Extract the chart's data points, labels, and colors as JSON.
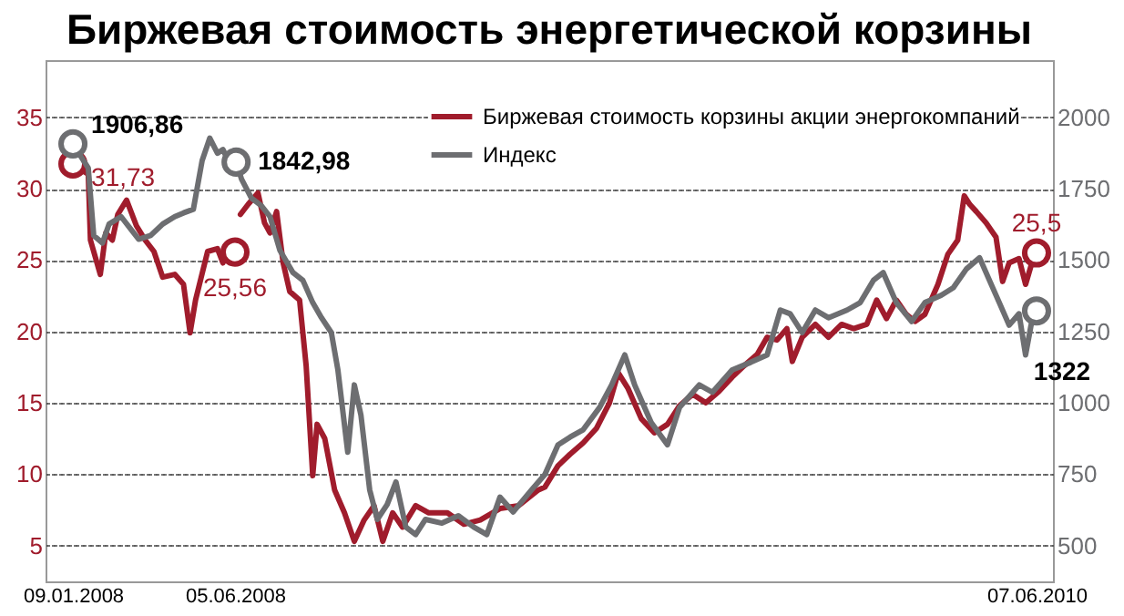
{
  "chart_data": {
    "type": "line",
    "title": "Биржевая стоимость энергетической корзины",
    "xlim": [
      "2007-12-15",
      "2010-06-22"
    ],
    "xticks": [
      {
        "value": "2008-01-09",
        "label": "09.01.2008"
      },
      {
        "value": "2008-06-05",
        "label": "05.06.2008"
      },
      {
        "value": "2010-06-07",
        "label": "07.06.2010"
      }
    ],
    "ylim": [
      2.5,
      39
    ],
    "yticks": [
      5,
      10,
      15,
      20,
      25,
      30,
      35
    ],
    "y2lim": [
      375,
      2200
    ],
    "y2ticks": [
      500,
      750,
      1000,
      1250,
      1500,
      1750,
      2000
    ],
    "grid": "y",
    "legend": "top right",
    "line_style": "solid",
    "series": [
      {
        "name": "Биржевая стоимость корзины акции энергокомпаний",
        "color": "#a01c2c",
        "x": [
          "2008-01-09",
          "2008-01-23",
          "2008-01-25",
          "2008-02-03",
          "2008-02-08",
          "2008-02-14",
          "2008-02-19",
          "2008-02-27",
          "2008-03-07",
          "2008-03-15",
          "2008-03-23",
          "2008-03-31",
          "2008-04-11",
          "2008-04-19",
          "2008-04-25",
          "2008-04-30",
          "2008-05-11",
          "2008-05-20",
          "2008-05-25",
          "2008-05-30",
          "2008-06-05",
          "2008-06-07",
          "2008-06-10",
          "2008-06-17",
          "2008-06-26",
          "2008-07-02",
          "2008-07-07",
          "2008-07-13",
          "2008-07-19",
          "2008-07-25",
          "2008-08-03",
          "2008-08-09",
          "2008-08-15",
          "2008-08-19",
          "2008-08-26",
          "2008-09-04",
          "2008-09-13",
          "2008-09-22",
          "2008-10-01",
          "2008-10-10",
          "2008-10-18",
          "2008-10-27",
          "2008-11-05",
          "2008-11-17",
          "2008-11-29",
          "2008-12-16",
          "2008-12-31",
          "2009-01-15",
          "2009-02-02",
          "2009-02-19",
          "2009-03-09",
          "2009-03-15",
          "2009-03-27",
          "2009-04-07",
          "2009-04-19",
          "2009-05-01",
          "2009-05-13",
          "2009-05-21",
          "2009-05-30",
          "2009-06-11",
          "2009-06-23",
          "2009-07-05",
          "2009-07-16",
          "2009-07-28",
          "2009-08-09",
          "2009-08-21",
          "2009-09-02",
          "2009-09-13",
          "2009-09-25",
          "2009-10-04",
          "2009-10-13",
          "2009-10-22",
          "2009-10-27",
          "2009-11-05",
          "2009-11-17",
          "2009-11-29",
          "2009-12-11",
          "2009-12-22",
          "2010-01-03",
          "2010-01-12",
          "2010-01-21",
          "2010-01-30",
          "2010-02-08",
          "2010-02-16",
          "2010-02-25",
          "2010-03-09",
          "2010-03-18",
          "2010-03-27",
          "2010-04-02",
          "2010-04-07",
          "2010-04-13",
          "2010-04-22",
          "2010-05-01",
          "2010-05-07",
          "2010-05-13",
          "2010-05-22",
          "2010-05-28",
          "2010-06-02",
          "2010-06-07"
        ],
        "values": [
          31.73,
          31,
          26.4,
          24,
          26.9,
          26.4,
          28.2,
          29.2,
          27.4,
          26.4,
          25.6,
          23.8,
          24,
          23.3,
          19.9,
          22.2,
          25.6,
          25.8,
          24.8,
          25.6,
          25.56,
          null,
          28.2,
          28.9,
          29.7,
          27.6,
          26.9,
          28.4,
          24.8,
          22.8,
          22.2,
          17.6,
          9.9,
          13.5,
          12.5,
          8.9,
          7.3,
          5.3,
          6.8,
          7.8,
          5.3,
          7.3,
          6.3,
          7.8,
          7.3,
          7.3,
          6.5,
          6.8,
          7.6,
          7.8,
          8.9,
          9.1,
          10.6,
          11.4,
          12.2,
          13.2,
          15,
          17.1,
          16,
          13.9,
          12.9,
          13.5,
          14.8,
          15.6,
          15,
          15.8,
          16.8,
          17.6,
          18.4,
          19.6,
          19.4,
          20.2,
          17.9,
          19.6,
          20.5,
          19.6,
          20.5,
          20.2,
          20.5,
          22.2,
          20.9,
          22.2,
          21.2,
          20.7,
          21.2,
          23.3,
          25.4,
          26.4,
          29.5,
          28.9,
          28.4,
          27.6,
          26.6,
          23.5,
          24.8,
          25.1,
          23.3,
          24.6,
          25.5
        ],
        "value_labels": [
          "31,73",
          null,
          null,
          null,
          null,
          null,
          null,
          null,
          null,
          null,
          null,
          null,
          null,
          null,
          null,
          null,
          null,
          null,
          null,
          null,
          "25,56",
          null,
          null,
          null,
          null,
          null,
          null,
          null,
          null,
          null,
          null,
          null,
          null,
          null,
          null,
          null,
          null,
          null,
          null,
          null,
          null,
          null,
          null,
          null,
          null,
          null,
          null,
          null,
          null,
          null,
          null,
          null,
          null,
          null,
          null,
          null,
          null,
          null,
          null,
          null,
          null,
          null,
          null,
          null,
          null,
          null,
          null,
          null,
          null,
          null,
          null,
          null,
          null,
          null,
          null,
          null,
          null,
          null,
          null,
          null,
          null,
          null,
          null,
          null,
          null,
          null,
          null,
          null,
          null,
          null,
          null,
          null,
          null,
          null,
          null,
          null,
          null,
          null,
          "25,5"
        ]
      },
      {
        "name": "Индекс",
        "color": "#6d6e71",
        "axis": "y2",
        "x": [
          "2008-01-09",
          "2008-01-23",
          "2008-01-28",
          "2008-02-05",
          "2008-02-11",
          "2008-02-22",
          "2008-03-09",
          "2008-03-20",
          "2008-03-31",
          "2008-04-11",
          "2008-04-19",
          "2008-04-28",
          "2008-05-06",
          "2008-05-13",
          "2008-05-20",
          "2008-05-25",
          "2008-06-02",
          "2008-06-06",
          "2008-06-11",
          "2008-06-20",
          "2008-06-29",
          "2008-07-07",
          "2008-07-16",
          "2008-07-28",
          "2008-08-06",
          "2008-08-15",
          "2008-08-23",
          "2008-09-01",
          "2008-09-07",
          "2008-09-16",
          "2008-09-22",
          "2008-09-28",
          "2008-10-06",
          "2008-10-13",
          "2008-10-22",
          "2008-10-30",
          "2008-11-08",
          "2008-11-17",
          "2008-11-26",
          "2008-12-11",
          "2008-12-26",
          "2009-01-09",
          "2009-01-21",
          "2009-02-02",
          "2009-02-14",
          "2009-03-03",
          "2009-03-15",
          "2009-03-27",
          "2009-04-07",
          "2009-04-19",
          "2009-05-04",
          "2009-05-15",
          "2009-05-27",
          "2009-06-05",
          "2009-06-20",
          "2009-07-05",
          "2009-07-16",
          "2009-08-03",
          "2009-08-15",
          "2009-09-02",
          "2009-09-19",
          "2009-10-04",
          "2009-10-16",
          "2009-10-25",
          "2009-11-05",
          "2009-11-17",
          "2009-11-29",
          "2009-12-16",
          "2009-12-28",
          "2010-01-09",
          "2010-01-18",
          "2010-01-30",
          "2010-02-13",
          "2010-02-25",
          "2010-03-12",
          "2010-03-23",
          "2010-04-04",
          "2010-04-16",
          "2010-04-25",
          "2010-05-04",
          "2010-05-13",
          "2010-05-22",
          "2010-05-28",
          "2010-06-02",
          "2010-06-07"
        ],
        "values": [
          1906.86,
          1822,
          1586,
          1560,
          1626,
          1652,
          1573,
          1586,
          1626,
          1652,
          1665,
          1678,
          1848,
          1927,
          1874,
          1887,
          1822,
          1842.98,
          1783,
          1717,
          1691,
          1652,
          1534,
          1456,
          1429,
          1351,
          1298,
          1246,
          1115,
          827,
          1063,
          958,
          696,
          592,
          644,
          723,
          565,
          539,
          592,
          579,
          605,
          565,
          539,
          670,
          618,
          696,
          749,
          853,
          880,
          906,
          984,
          1063,
          1168,
          1063,
          932,
          853,
          984,
          1063,
          1037,
          1115,
          1142,
          1168,
          1325,
          1312,
          1246,
          1325,
          1298,
          1325,
          1351,
          1429,
          1456,
          1351,
          1285,
          1351,
          1377,
          1403,
          1469,
          1508,
          1429,
          1351,
          1272,
          1312,
          1168,
          1272,
          1322
        ],
        "value_labels": [
          "1906,86",
          null,
          null,
          null,
          null,
          null,
          null,
          null,
          null,
          null,
          null,
          null,
          null,
          null,
          null,
          null,
          null,
          "1842,98",
          null,
          null,
          null,
          null,
          null,
          null,
          null,
          null,
          null,
          null,
          null,
          null,
          null,
          null,
          null,
          null,
          null,
          null,
          null,
          null,
          null,
          null,
          null,
          null,
          null,
          null,
          null,
          null,
          null,
          null,
          null,
          null,
          null,
          null,
          null,
          null,
          null,
          null,
          null,
          null,
          null,
          null,
          null,
          null,
          null,
          null,
          null,
          null,
          null,
          null,
          null,
          null,
          null,
          null,
          null,
          null,
          null,
          null,
          null,
          null,
          null,
          null,
          null,
          null,
          null,
          null,
          "1322"
        ]
      }
    ]
  }
}
